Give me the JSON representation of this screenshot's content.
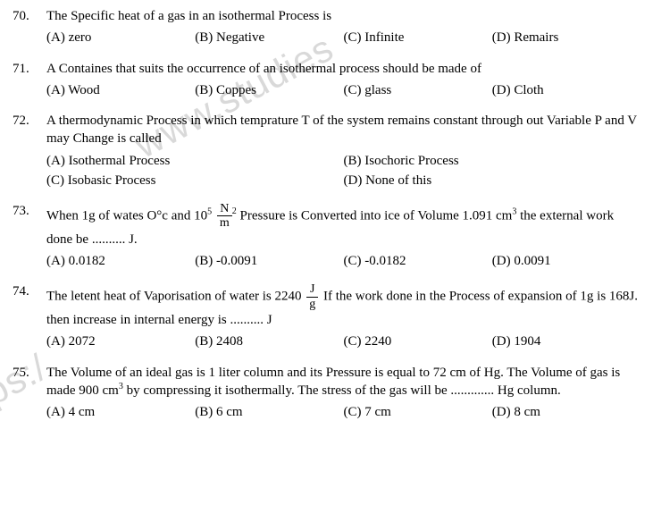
{
  "watermark1": "www.studies",
  "watermark2": "tps:/",
  "q70": {
    "num": "70.",
    "stem": "The Specific heat of a gas in an isothermal Process is",
    "a": "(A) zero",
    "b": "(B) Negative",
    "c": "(C) Infinite",
    "d": "(D) Remairs"
  },
  "q71": {
    "num": "71.",
    "stem": "A Containes that suits the occurrence of an isothermal process should be made of",
    "a": "(A)  Wood",
    "b": "(B) Coppes",
    "c": "(C) glass",
    "d": "(D) Cloth"
  },
  "q72": {
    "num": "72.",
    "stem": "A thermodynamic Process in which temprature T of the system remains constant through out Variable P and V may Change is called",
    "a": "(A) Isothermal Process",
    "b": "(B) Isochoric Process",
    "c": "(C) Isobasic Process",
    "d": "(D) None of this"
  },
  "q73": {
    "num": "73.",
    "stem_p1": "When 1g of wates ",
    "stem_oc": "O°c",
    "stem_p2": " and ",
    "stem_exp": "10",
    "stem_sup": "5",
    "frac_num": "N",
    "frac_den": "m",
    "stem_fsup": "2",
    "stem_p3": " Pressure is Converted into ice of Volume 1.091 cm",
    "stem_cm3sup": "3",
    "stem_p4": " the external work done be .......... J.",
    "a": "(A) 0.0182",
    "b": "(B) -0.0091",
    "c": "(C) -0.0182",
    "d": "(D) 0.0091"
  },
  "q74": {
    "num": "74.",
    "stem_p1": "The letent heat of Vaporisation of water is  2240 ",
    "frac_num": "J",
    "frac_den": "g",
    "stem_p2": "  If the work done in the Process of expansion of 1g is 168J. then increase in internal energy is .......... J",
    "a": "(A) 2072",
    "b": "(B) 2408",
    "c": "(C) 2240",
    "d": "(D) 1904"
  },
  "q75": {
    "num": "75.",
    "stem_p1": "The Volume of an ideal gas is 1 liter column and its Pressure is equal to 72 cm of Hg. The Volume of gas is made  900 cm",
    "stem_sup": "3",
    "stem_p2": " by compressing it isothermally. The stress of the gas will be ............. Hg column.",
    "a": "(A) 4 cm",
    "b": "(B) 6 cm",
    "c": "(C) 7 cm",
    "d": "(D) 8 cm"
  }
}
